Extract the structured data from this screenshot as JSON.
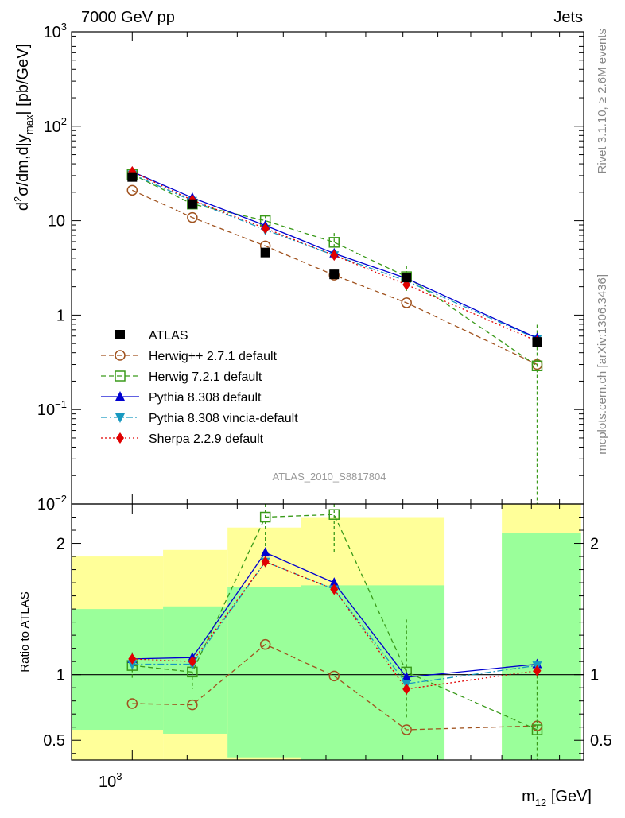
{
  "header": {
    "left": "7000 GeV pp",
    "right": "Jets"
  },
  "side_labels": {
    "rivet": "Rivet 3.1.10, ≥ 2.6M events",
    "mcplots": "mcplots.cern.ch [arXiv:1306.3436]"
  },
  "analysis_id": "ATLAS_2010_S8817804",
  "colors": {
    "atlas": "#000000",
    "herwigpp": "#a0521e",
    "herwig7": "#3a9a1a",
    "pythia": "#0000d0",
    "vincia": "#1899c0",
    "sherpa": "#e00000",
    "band_inner": "#9aff9a",
    "band_outer": "#ffff99"
  },
  "chart_data": [
    {
      "type": "line",
      "panel": "main",
      "ylabel_parts": [
        "d",
        "2",
        "σ/dm,d|y",
        "max",
        "| [pb/GeV]"
      ],
      "yscale": "log",
      "xscale": "log",
      "ylim": [
        0.01,
        1000
      ],
      "yticks": [
        {
          "value": 1000,
          "base": "10",
          "exp": "3"
        },
        {
          "value": 100,
          "base": "10",
          "exp": "2"
        },
        {
          "value": 10,
          "base": "10",
          "exp": ""
        },
        {
          "value": 1,
          "base": "1",
          "exp": ""
        },
        {
          "value": 0.1,
          "base": "10",
          "exp": "−1"
        },
        {
          "value": 0.01,
          "base": "10",
          "exp": "−2"
        }
      ],
      "x": [
        1000,
        1110,
        1260,
        1420,
        1610,
        2020
      ],
      "series": [
        {
          "key": "atlas",
          "name": "ATLAS",
          "marker": "square-filled",
          "style": "none",
          "values": [
            29,
            15,
            4.6,
            2.7,
            2.5,
            0.52
          ]
        },
        {
          "key": "herwigpp",
          "name": "Herwig++ 2.7.1 default",
          "marker": "circle-open",
          "style": "dashed",
          "values": [
            21,
            10.8,
            5.4,
            2.65,
            1.35,
            0.3
          ]
        },
        {
          "key": "herwig7",
          "name": "Herwig 7.2.1 default",
          "marker": "square-open",
          "style": "dashed",
          "values": [
            31,
            15,
            10,
            5.9,
            2.55,
            0.29
          ],
          "errors": [
            [
              2,
              2
            ],
            [
              1.5,
              1.5
            ],
            [
              1.5,
              1.5
            ],
            [
              1.5,
              1.5
            ],
            [
              0.8,
              0.8
            ],
            [
              0.28,
              0.5
            ]
          ]
        },
        {
          "key": "pythia",
          "name": "Pythia 8.308 default",
          "marker": "triangle-up",
          "style": "solid",
          "values": [
            33,
            17.5,
            8.9,
            4.5,
            2.45,
            0.57
          ]
        },
        {
          "key": "vincia",
          "name": "Pythia 8.308 vincia-default",
          "marker": "triangle-down",
          "style": "dashdot",
          "values": [
            31,
            16.2,
            8.0,
            4.3,
            2.3,
            0.56
          ]
        },
        {
          "key": "sherpa",
          "name": "Sherpa 2.2.9 default",
          "marker": "diamond",
          "style": "dotted",
          "values": [
            33,
            16.5,
            8.3,
            4.3,
            2.1,
            0.53
          ]
        }
      ]
    },
    {
      "type": "line",
      "panel": "ratio",
      "ylabel": "Ratio to ATLAS",
      "ylim": [
        0.35,
        2.3
      ],
      "yticks": [
        {
          "value": 0.5,
          "label": "0.5"
        },
        {
          "value": 1,
          "label": "1"
        },
        {
          "value": 2,
          "label": "2"
        }
      ],
      "xtick_parts": [
        "10",
        "3"
      ],
      "xlabel_parts": [
        "m",
        "12",
        " [GeV]"
      ],
      "bins": [
        {
          "lo": 900,
          "hi": 1055,
          "inner": [
            0.58,
            1.5
          ],
          "outer": [
            0.35,
            1.9
          ]
        },
        {
          "lo": 1055,
          "hi": 1180,
          "inner": [
            0.55,
            1.52
          ],
          "outer": [
            0.35,
            1.95
          ]
        },
        {
          "lo": 1180,
          "hi": 1340,
          "inner": [
            0.37,
            1.67
          ],
          "outer": [
            0.35,
            2.12
          ]
        },
        {
          "lo": 1340,
          "hi": 1720,
          "inner": [
            0.35,
            1.68
          ],
          "outer": [
            0.35,
            2.2
          ]
        },
        {
          "lo": 1900,
          "hi": 2180,
          "inner": [
            0.35,
            2.08
          ],
          "outer": [
            0.35,
            2.3
          ]
        }
      ],
      "x": [
        1000,
        1110,
        1260,
        1420,
        1610,
        2020
      ],
      "series": [
        {
          "key": "herwigpp",
          "values": [
            0.78,
            0.77,
            1.23,
            0.99,
            0.58,
            0.61
          ]
        },
        {
          "key": "herwig7",
          "values": [
            1.07,
            1.02,
            2.2,
            2.22,
            1.02,
            0.58
          ],
          "errors": [
            [
              0.1,
              0.1
            ],
            [
              0.13,
              0.13
            ],
            [
              0.35,
              0.35
            ],
            [
              0.3,
              0.3
            ],
            [
              0.35,
              0.4
            ],
            [
              0.25,
              0.5
            ]
          ]
        },
        {
          "key": "pythia",
          "values": [
            1.12,
            1.13,
            1.93,
            1.7,
            0.98,
            1.08
          ]
        },
        {
          "key": "vincia",
          "values": [
            1.08,
            1.08,
            1.86,
            1.65,
            0.93,
            1.07
          ]
        },
        {
          "key": "sherpa",
          "values": [
            1.12,
            1.1,
            1.86,
            1.65,
            0.89,
            1.03
          ]
        }
      ]
    }
  ]
}
